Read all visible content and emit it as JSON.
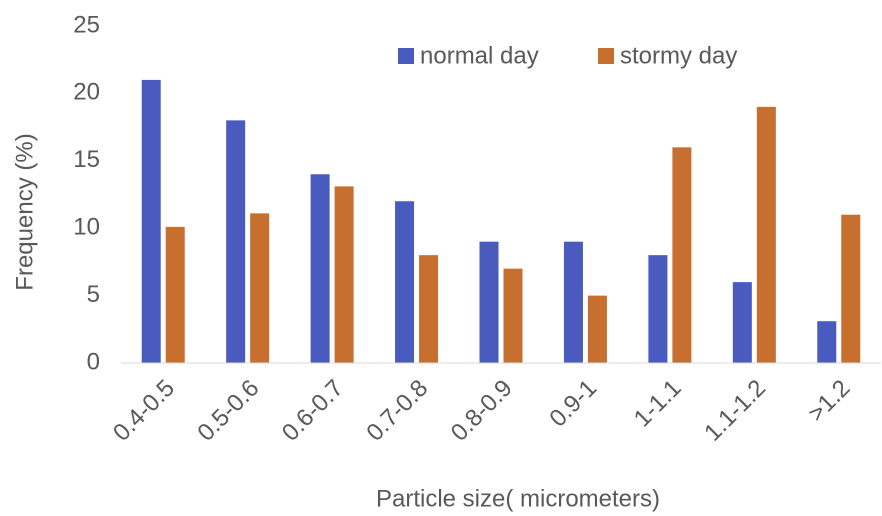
{
  "chart_data": {
    "type": "bar",
    "x_label": "Particle size( micrometers)",
    "y_label": "Frequency (%)",
    "categories": [
      "0.4-0.5",
      "0.5-0.6",
      "0.6-0.7",
      "0.7-0.8",
      "0.8-0.9",
      "0.9-1",
      "1-1.1",
      "1.1-1.2",
      ">1.2"
    ],
    "series": [
      {
        "name": "normal day",
        "color": "#4a5bbf",
        "values": [
          21,
          18,
          14,
          12,
          9,
          9,
          8,
          6,
          3.1
        ]
      },
      {
        "name": "stormy day",
        "color": "#c76f2f",
        "values": [
          10.1,
          11.1,
          13.1,
          8,
          7,
          5,
          16,
          19,
          11
        ]
      }
    ],
    "ylim": [
      0,
      25
    ],
    "yticks": [
      0,
      5,
      10,
      15,
      20,
      25
    ],
    "grid": false,
    "legend": "top"
  }
}
